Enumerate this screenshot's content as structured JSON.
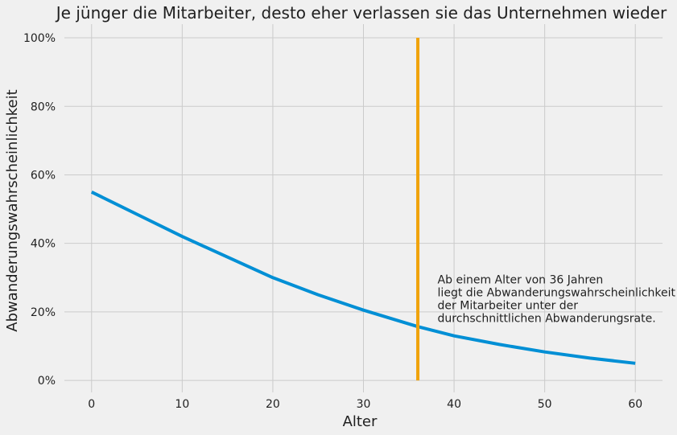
{
  "chart_data": {
    "type": "line",
    "title": "Je jünger die Mitarbeiter, desto eher verlassen sie das Unternehmen wieder",
    "xlabel": "Alter",
    "ylabel": "Abwanderungswahrscheinlichkeit",
    "xlim": [
      -3,
      63
    ],
    "ylim": [
      -0.035,
      1.04
    ],
    "x_ticks": [
      0,
      10,
      20,
      30,
      40,
      50,
      60
    ],
    "x_tick_labels": [
      "0",
      "10",
      "20",
      "30",
      "40",
      "50",
      "60"
    ],
    "y_ticks": [
      0,
      0.2,
      0.4,
      0.6,
      0.8,
      1.0
    ],
    "y_tick_labels": [
      "0%",
      "20%",
      "40%",
      "60%",
      "80%",
      "100%"
    ],
    "grid": true,
    "series": [
      {
        "color": "#008fd5",
        "x": [
          0,
          5,
          10,
          15,
          20,
          25,
          30,
          35,
          36,
          40,
          45,
          50,
          55,
          60
        ],
        "y": [
          0.55,
          0.485,
          0.42,
          0.36,
          0.3,
          0.25,
          0.205,
          0.165,
          0.157,
          0.13,
          0.105,
          0.083,
          0.065,
          0.05
        ]
      }
    ],
    "vline": {
      "x": 36,
      "y_range": [
        0,
        1.0
      ],
      "color": "#f0a30a"
    },
    "annotation": {
      "x": 38,
      "y": 0.25,
      "lines": [
        "Ab einem Alter von 36 Jahren",
        "liegt die Abwanderungswahrscheinlichkeit",
        "der Mitarbeiter unter der",
        "durchschnittlichen Abwanderungsrate."
      ]
    }
  }
}
